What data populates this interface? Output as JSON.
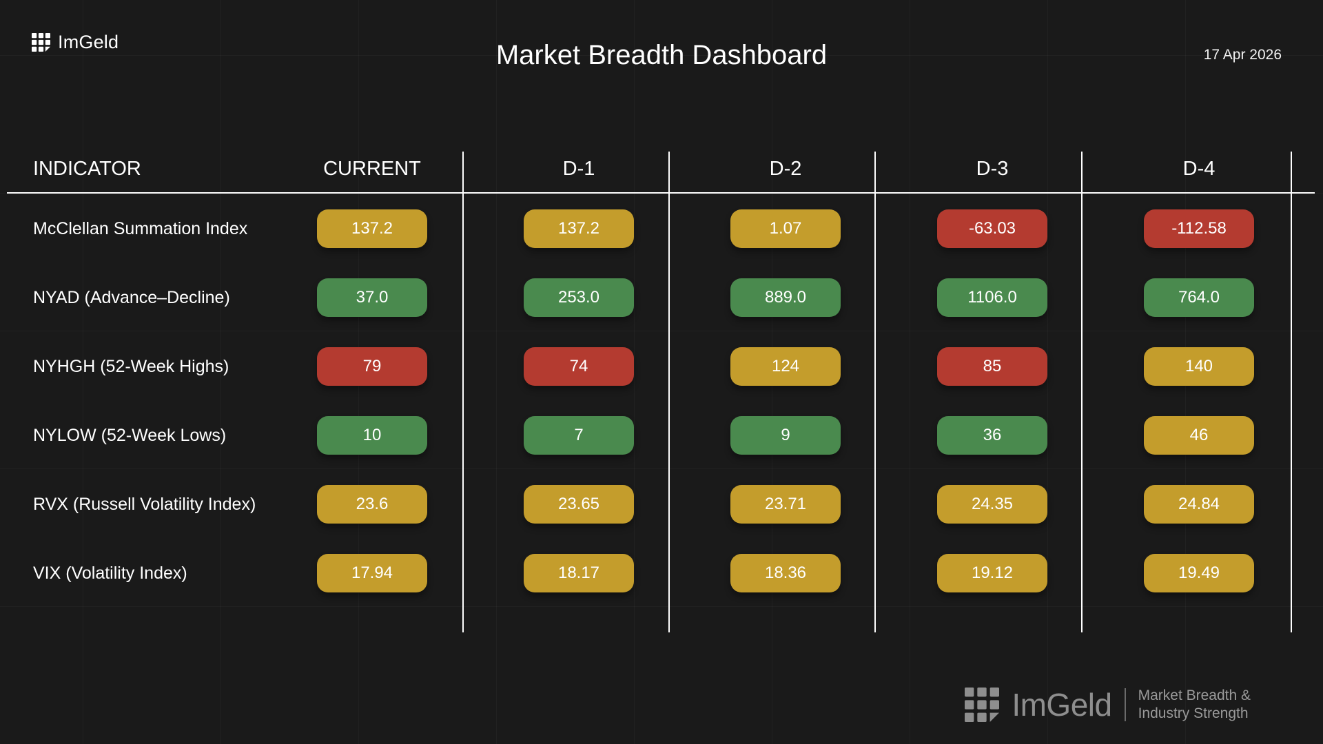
{
  "header": {
    "brand": "ImGeld",
    "title": "Market Breadth Dashboard",
    "date": "17 Apr 2026"
  },
  "table": {
    "columns": [
      "INDICATOR",
      "CURRENT",
      "D-1",
      "D-2",
      "D-3",
      "D-4"
    ],
    "rows": [
      {
        "label": "McClellan Summation Index",
        "cells": [
          {
            "value": "137.2",
            "status": "gold"
          },
          {
            "value": "137.2",
            "status": "gold"
          },
          {
            "value": "1.07",
            "status": "gold"
          },
          {
            "value": "-63.03",
            "status": "red"
          },
          {
            "value": "-112.58",
            "status": "red"
          }
        ]
      },
      {
        "label": "NYAD (Advance–Decline)",
        "cells": [
          {
            "value": "37.0",
            "status": "green"
          },
          {
            "value": "253.0",
            "status": "green"
          },
          {
            "value": "889.0",
            "status": "green"
          },
          {
            "value": "1106.0",
            "status": "green"
          },
          {
            "value": "764.0",
            "status": "green"
          }
        ]
      },
      {
        "label": "NYHGH (52-Week Highs)",
        "cells": [
          {
            "value": "79",
            "status": "red"
          },
          {
            "value": "74",
            "status": "red"
          },
          {
            "value": "124",
            "status": "gold"
          },
          {
            "value": "85",
            "status": "red"
          },
          {
            "value": "140",
            "status": "gold"
          }
        ]
      },
      {
        "label": "NYLOW (52-Week Lows)",
        "cells": [
          {
            "value": "10",
            "status": "green"
          },
          {
            "value": "7",
            "status": "green"
          },
          {
            "value": "9",
            "status": "green"
          },
          {
            "value": "36",
            "status": "green"
          },
          {
            "value": "46",
            "status": "gold"
          }
        ]
      },
      {
        "label": "RVX (Russell Volatility Index)",
        "cells": [
          {
            "value": "23.6",
            "status": "gold"
          },
          {
            "value": "23.65",
            "status": "gold"
          },
          {
            "value": "23.71",
            "status": "gold"
          },
          {
            "value": "24.35",
            "status": "gold"
          },
          {
            "value": "24.84",
            "status": "gold"
          }
        ]
      },
      {
        "label": "VIX (Volatility Index)",
        "cells": [
          {
            "value": "17.94",
            "status": "gold"
          },
          {
            "value": "18.17",
            "status": "gold"
          },
          {
            "value": "18.36",
            "status": "gold"
          },
          {
            "value": "19.12",
            "status": "gold"
          },
          {
            "value": "19.49",
            "status": "gold"
          }
        ]
      }
    ]
  },
  "status_colors": {
    "gold": "#c49d2c",
    "green": "#4a8a4e",
    "red": "#b43b30"
  },
  "footer": {
    "brand": "ImGeld",
    "tagline": [
      "Market Breadth &",
      "Industry Strength"
    ]
  },
  "chart_data": {
    "type": "table",
    "title": "Market Breadth Dashboard",
    "date": "17 Apr 2026",
    "columns": [
      "CURRENT",
      "D-1",
      "D-2",
      "D-3",
      "D-4"
    ],
    "rows": [
      {
        "indicator": "McClellan Summation Index",
        "values": [
          137.2,
          137.2,
          1.07,
          -63.03,
          -112.58
        ],
        "colors": [
          "gold",
          "gold",
          "gold",
          "red",
          "red"
        ]
      },
      {
        "indicator": "NYAD (Advance–Decline)",
        "values": [
          37.0,
          253.0,
          889.0,
          1106.0,
          764.0
        ],
        "colors": [
          "green",
          "green",
          "green",
          "green",
          "green"
        ]
      },
      {
        "indicator": "NYHGH (52-Week Highs)",
        "values": [
          79,
          74,
          124,
          85,
          140
        ],
        "colors": [
          "red",
          "red",
          "gold",
          "red",
          "gold"
        ]
      },
      {
        "indicator": "NYLOW (52-Week Lows)",
        "values": [
          10,
          7,
          9,
          36,
          46
        ],
        "colors": [
          "green",
          "green",
          "green",
          "green",
          "gold"
        ]
      },
      {
        "indicator": "RVX (Russell Volatility Index)",
        "values": [
          23.6,
          23.65,
          23.71,
          24.35,
          24.84
        ],
        "colors": [
          "gold",
          "gold",
          "gold",
          "gold",
          "gold"
        ]
      },
      {
        "indicator": "VIX (Volatility Index)",
        "values": [
          17.94,
          18.17,
          18.36,
          19.12,
          19.49
        ],
        "colors": [
          "gold",
          "gold",
          "gold",
          "gold",
          "gold"
        ]
      }
    ],
    "legend_position": "none",
    "grid": true
  }
}
